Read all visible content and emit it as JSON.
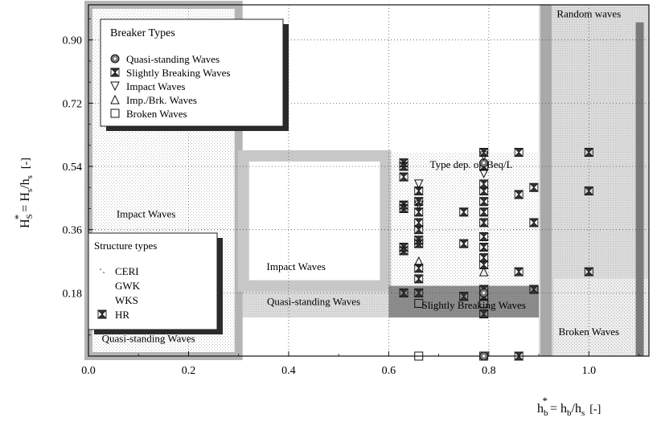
{
  "chart_data": {
    "type": "scatter",
    "title": "",
    "xlim": [
      0.0,
      1.12
    ],
    "ylim": [
      0.0,
      1.0
    ],
    "x_ticks": [
      {
        "value": 0.0,
        "label": "0.0"
      },
      {
        "value": 0.2,
        "label": "0.2"
      },
      {
        "value": 0.4,
        "label": "0.4"
      },
      {
        "value": 0.6,
        "label": "0.6"
      },
      {
        "value": 0.8,
        "label": "0.8"
      },
      {
        "value": 1.0,
        "label": "1.0"
      }
    ],
    "y_ticks": [
      {
        "value": 0.18,
        "label": "0.18"
      },
      {
        "value": 0.36,
        "label": "0.36"
      },
      {
        "value": 0.54,
        "label": "0.54"
      },
      {
        "value": 0.72,
        "label": "0.72"
      },
      {
        "value": 0.9,
        "label": "0.90"
      }
    ],
    "grid": "dotted",
    "xlabel": {
      "main": "h",
      "sup": "*",
      "sub": "b",
      "rest": "= h",
      "sub2": "b",
      "rest2": "/h",
      "sub3": "s",
      "unit": "[-]"
    },
    "ylabel": {
      "main": "H",
      "sup": "*",
      "sub": "S",
      "rest": "= H",
      "sub2": "s",
      "rest2": "/h",
      "sub3": "s",
      "unit": "[-]"
    },
    "legend_breaker": {
      "title": "Breaker Types",
      "entries": [
        {
          "symbol": "circle-dot",
          "label": "Quasi-standing Waves"
        },
        {
          "symbol": "hourglass",
          "label": "Slightly Breaking Waves"
        },
        {
          "symbol": "triangle-down",
          "label": "Impact Waves"
        },
        {
          "symbol": "triangle-up",
          "label": "Imp./Brk. Waves"
        },
        {
          "symbol": "square",
          "label": "Broken Waves"
        }
      ]
    },
    "legend_structure": {
      "title": "Structure types",
      "entries": [
        {
          "symbol": "dots",
          "label": "CERI"
        },
        {
          "symbol": "none",
          "label": "GWK"
        },
        {
          "symbol": "none",
          "label": "WKS"
        },
        {
          "symbol": "hourglass",
          "label": "HR"
        }
      ]
    },
    "regions": [
      {
        "name": "Random waves",
        "x": [
          0.9,
          1.12
        ],
        "y": [
          0.0,
          1.0
        ]
      },
      {
        "name": "Impact Waves",
        "x": [
          0.0,
          0.3
        ],
        "y": [
          0.36,
          1.0
        ]
      },
      {
        "name": "Quasi-standing Waves",
        "x": [
          0.0,
          0.3
        ],
        "y": [
          0.0,
          0.36
        ]
      },
      {
        "name": "Impact Waves",
        "x": [
          0.3,
          0.6
        ],
        "y": [
          0.2,
          0.57
        ]
      },
      {
        "name": "Quasi-standing Waves",
        "x": [
          0.3,
          0.6
        ],
        "y": [
          0.11,
          0.2
        ]
      },
      {
        "name": "Type dep. on Beq/L",
        "x": [
          0.6,
          0.9
        ],
        "y": [
          0.2,
          0.58
        ]
      },
      {
        "name": "Slightly Breaking Waves",
        "x": [
          0.6,
          0.9
        ],
        "y": [
          0.11,
          0.2
        ]
      },
      {
        "name": "Broken Waves",
        "x": [
          0.93,
          1.12
        ],
        "y": [
          0.0,
          0.22
        ]
      }
    ],
    "region_labels": [
      {
        "text": "Random waves",
        "x": 1.0,
        "y": 0.965
      },
      {
        "text": "Impact Waves",
        "x": 0.115,
        "y": 0.395
      },
      {
        "text": "Quasi-standing Waves",
        "x": 0.12,
        "y": 0.04
      },
      {
        "text": "Impact Waves",
        "x": 0.415,
        "y": 0.245
      },
      {
        "text": "Quasi-standing Waves",
        "x": 0.45,
        "y": 0.145
      },
      {
        "text": "Type dep. on Beq/L",
        "x": 0.765,
        "y": 0.535
      },
      {
        "text": "Slightly Breaking Waves",
        "x": 0.77,
        "y": 0.135
      },
      {
        "text": "Broken Waves",
        "x": 1.0,
        "y": 0.06
      }
    ],
    "series": [
      {
        "name": "HR",
        "symbol": "hourglass",
        "points": [
          [
            0.63,
            0.18
          ],
          [
            0.63,
            0.3
          ],
          [
            0.63,
            0.31
          ],
          [
            0.63,
            0.42
          ],
          [
            0.63,
            0.43
          ],
          [
            0.63,
            0.51
          ],
          [
            0.63,
            0.54
          ],
          [
            0.63,
            0.55
          ],
          [
            0.66,
            0.18
          ],
          [
            0.66,
            0.22
          ],
          [
            0.66,
            0.25
          ],
          [
            0.66,
            0.32
          ],
          [
            0.66,
            0.33
          ],
          [
            0.66,
            0.36
          ],
          [
            0.66,
            0.38
          ],
          [
            0.66,
            0.41
          ],
          [
            0.66,
            0.44
          ],
          [
            0.66,
            0.47
          ],
          [
            0.75,
            0.17
          ],
          [
            0.75,
            0.32
          ],
          [
            0.75,
            0.41
          ],
          [
            0.79,
            0.12
          ],
          [
            0.79,
            0.17
          ],
          [
            0.79,
            0.19
          ],
          [
            0.79,
            0.26
          ],
          [
            0.79,
            0.28
          ],
          [
            0.79,
            0.31
          ],
          [
            0.79,
            0.34
          ],
          [
            0.79,
            0.38
          ],
          [
            0.79,
            0.41
          ],
          [
            0.79,
            0.44
          ],
          [
            0.79,
            0.47
          ],
          [
            0.79,
            0.49
          ],
          [
            0.79,
            0.54
          ],
          [
            0.79,
            0.58
          ],
          [
            0.86,
            0.0
          ],
          [
            0.86,
            0.24
          ],
          [
            0.86,
            0.46
          ],
          [
            0.86,
            0.58
          ],
          [
            0.89,
            0.19
          ],
          [
            0.89,
            0.38
          ],
          [
            0.89,
            0.48
          ],
          [
            1.0,
            0.24
          ],
          [
            1.0,
            0.47
          ],
          [
            1.0,
            0.58
          ]
        ]
      },
      {
        "name": "CERI",
        "symbol": "dots",
        "points": []
      },
      {
        "name": "Quasi-standing Waves",
        "symbol": "circle-dot",
        "points": [
          [
            0.79,
            0.0
          ],
          [
            0.79,
            0.18
          ],
          [
            0.79,
            0.55
          ]
        ]
      },
      {
        "name": "Impact Waves",
        "symbol": "triangle-down",
        "points": [
          [
            0.66,
            0.49
          ],
          [
            0.66,
            0.43
          ],
          [
            0.79,
            0.57
          ],
          [
            0.79,
            0.52
          ]
        ]
      },
      {
        "name": "Imp./Brk. Waves",
        "symbol": "triangle-up",
        "points": [
          [
            0.66,
            0.27
          ],
          [
            0.79,
            0.24
          ]
        ]
      },
      {
        "name": "Broken Waves",
        "symbol": "square",
        "points": [
          [
            0.66,
            0.0
          ],
          [
            0.66,
            0.15
          ],
          [
            0.79,
            0.15
          ],
          [
            0.79,
            0.0
          ]
        ]
      }
    ]
  }
}
